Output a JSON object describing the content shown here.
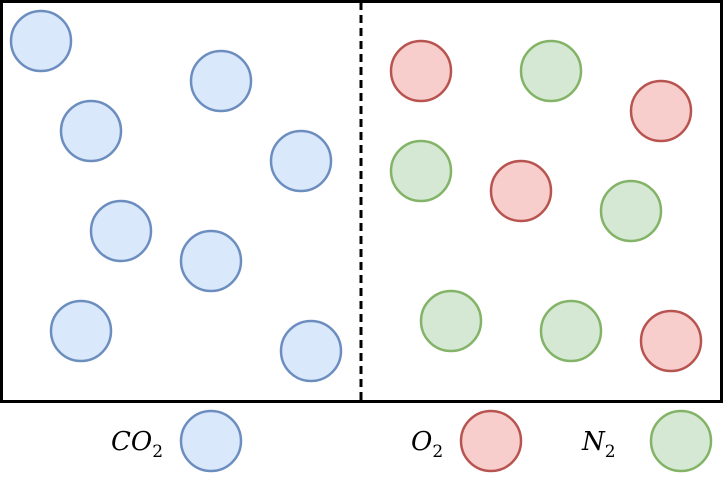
{
  "colors": {
    "co2_fill": "#dae8fc",
    "co2_stroke": "#6c8ebf",
    "o2_fill": "#f8cecc",
    "o2_stroke": "#b85450",
    "n2_fill": "#d5e8d4",
    "n2_stroke": "#82b366",
    "border": "#000000",
    "divider": "#000000"
  },
  "legend": {
    "co2": {
      "main": "CO",
      "sub": "2"
    },
    "o2": {
      "main": "O",
      "sub": "2"
    },
    "n2": {
      "main": "N",
      "sub": "2"
    }
  },
  "molecules": {
    "co2_count": 8,
    "o2_count": 4,
    "n2_count": 5
  }
}
